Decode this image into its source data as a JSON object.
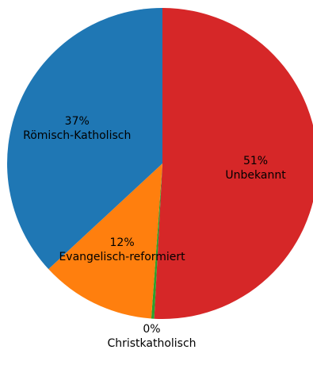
{
  "chart_data": {
    "type": "pie",
    "slices": [
      {
        "label": "Unbekannt",
        "value": 51,
        "pct_label": "51%",
        "color": "#d62728"
      },
      {
        "label": "Christkatholisch",
        "value": 0.3,
        "pct_label": "0%",
        "color": "#2ca02c"
      },
      {
        "label": "Evangelisch-reformiert",
        "value": 12,
        "pct_label": "12%",
        "color": "#ff7f0e"
      },
      {
        "label": "Römisch-Katholisch",
        "value": 37,
        "pct_label": "37%",
        "color": "#1f77b4"
      }
    ],
    "start_angle": "top (12 o'clock)",
    "direction": "clockwise",
    "legend": "none"
  }
}
